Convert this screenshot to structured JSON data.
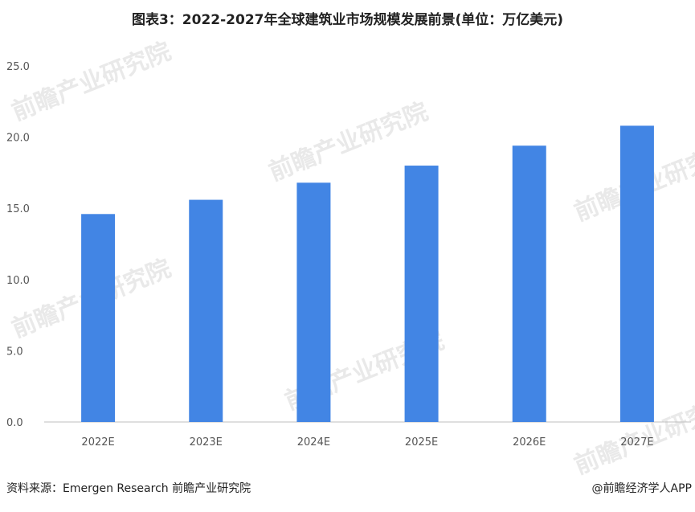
{
  "title": "图表3：2022-2027年全球建筑业市场规模发展前景(单位：万亿美元)",
  "source": "资料来源：Emergen Research 前瞻产业研究院",
  "brand": "@前瞻经济学人APP",
  "watermark": "前瞻产业研究院",
  "colors": {
    "bar": "#4285E4",
    "axis": "#bfbfbf",
    "tick_text": "#555555"
  },
  "chart_data": {
    "type": "bar",
    "title": "图表3：2022-2027年全球建筑业市场规模发展前景(单位：万亿美元)",
    "categories": [
      "2022E",
      "2023E",
      "2024E",
      "2025E",
      "2026E",
      "2027E"
    ],
    "values": [
      14.6,
      15.6,
      16.8,
      18.0,
      19.4,
      20.8
    ],
    "ylim": [
      0,
      25
    ],
    "yticks": [
      0,
      5,
      10,
      15,
      20,
      25
    ],
    "ytick_labels": [
      "0.0",
      "5.0",
      "10.0",
      "15.0",
      "20.0",
      "25.0"
    ],
    "xlabel": "",
    "ylabel": "",
    "grid": false,
    "legend": "none"
  }
}
